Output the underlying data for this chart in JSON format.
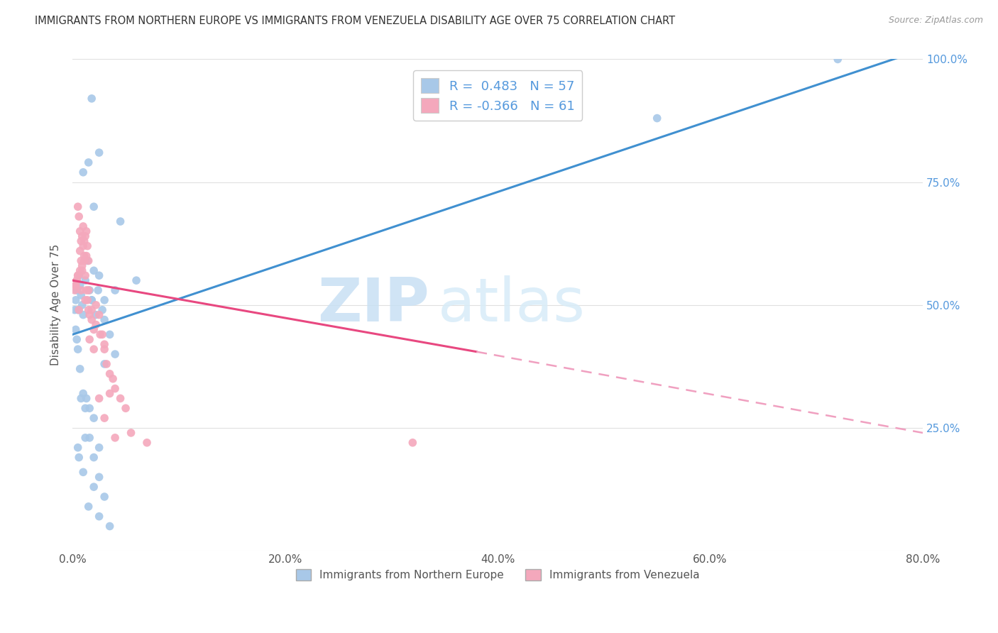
{
  "title": "IMMIGRANTS FROM NORTHERN EUROPE VS IMMIGRANTS FROM VENEZUELA DISABILITY AGE OVER 75 CORRELATION CHART",
  "source": "Source: ZipAtlas.com",
  "ylabel": "Disability Age Over 75",
  "blue_R": 0.483,
  "blue_N": 57,
  "pink_R": -0.366,
  "pink_N": 61,
  "blue_color": "#A8C8E8",
  "pink_color": "#F4A8BC",
  "blue_line_color": "#4090D0",
  "pink_line_color": "#E84880",
  "pink_dashed_color": "#F0A0C0",
  "legend_label_blue": "Immigrants from Northern Europe",
  "legend_label_pink": "Immigrants from Venezuela",
  "blue_line_x0": 0.0,
  "blue_line_y0": 44.0,
  "blue_line_x1": 80.0,
  "blue_line_y1": 102.0,
  "pink_solid_x0": 0.0,
  "pink_solid_y0": 55.0,
  "pink_solid_x1": 38.0,
  "pink_solid_y1": 40.5,
  "pink_dash_x0": 38.0,
  "pink_dash_y0": 40.5,
  "pink_dash_x1": 80.0,
  "pink_dash_y1": 24.0,
  "blue_x": [
    1.0,
    2.5,
    2.0,
    4.5,
    1.5,
    1.8,
    6.0,
    4.0,
    0.2,
    0.3,
    0.4,
    0.5,
    0.6,
    0.7,
    0.8,
    0.9,
    1.0,
    1.2,
    1.4,
    1.6,
    1.8,
    2.0,
    2.2,
    2.5,
    2.8,
    3.0,
    3.5,
    4.0,
    0.3,
    0.5,
    0.7,
    1.0,
    1.3,
    1.6,
    2.0,
    2.5,
    3.0,
    0.4,
    0.8,
    1.2,
    1.6,
    2.0,
    2.5,
    3.0,
    0.5,
    1.0,
    1.5,
    2.0,
    2.5,
    3.5,
    0.6,
    1.2,
    1.8,
    2.4,
    3.0,
    55.0,
    72.0
  ],
  "blue_y": [
    77.0,
    81.0,
    70.0,
    67.0,
    79.0,
    92.0,
    55.0,
    53.0,
    49.0,
    51.0,
    53.0,
    49.0,
    56.0,
    54.0,
    52.0,
    50.0,
    48.0,
    55.0,
    59.0,
    53.0,
    51.0,
    57.0,
    48.0,
    56.0,
    49.0,
    47.0,
    44.0,
    40.0,
    45.0,
    41.0,
    37.0,
    32.0,
    31.0,
    29.0,
    27.0,
    21.0,
    38.0,
    43.0,
    31.0,
    29.0,
    23.0,
    19.0,
    15.0,
    11.0,
    21.0,
    16.0,
    9.0,
    13.0,
    7.0,
    5.0,
    19.0,
    23.0,
    51.0,
    53.0,
    51.0,
    88.0,
    100.0
  ],
  "pink_x": [
    0.2,
    0.3,
    0.4,
    0.5,
    0.6,
    0.7,
    0.8,
    0.9,
    1.0,
    1.1,
    1.2,
    1.3,
    1.4,
    1.5,
    0.5,
    0.6,
    0.7,
    0.8,
    0.9,
    1.0,
    1.1,
    1.2,
    1.3,
    1.4,
    1.5,
    1.6,
    1.8,
    2.0,
    2.2,
    2.5,
    2.8,
    3.0,
    3.2,
    3.5,
    3.8,
    4.0,
    4.5,
    5.0,
    0.3,
    0.5,
    0.7,
    0.9,
    1.1,
    1.3,
    1.5,
    1.8,
    2.2,
    2.6,
    3.0,
    3.5,
    0.4,
    0.8,
    1.2,
    1.6,
    2.0,
    2.5,
    3.0,
    4.0,
    5.5,
    7.0,
    32.0
  ],
  "pink_y": [
    53.0,
    54.0,
    55.0,
    56.0,
    49.0,
    61.0,
    59.0,
    57.0,
    66.0,
    63.0,
    64.0,
    65.0,
    62.0,
    59.0,
    70.0,
    68.0,
    65.0,
    63.0,
    64.0,
    62.0,
    60.0,
    56.0,
    53.0,
    51.0,
    49.0,
    48.0,
    47.0,
    45.0,
    50.0,
    48.0,
    44.0,
    41.0,
    38.0,
    36.0,
    35.0,
    33.0,
    31.0,
    29.0,
    54.0,
    56.0,
    57.0,
    58.0,
    59.0,
    60.0,
    53.0,
    49.0,
    46.0,
    44.0,
    42.0,
    32.0,
    55.0,
    53.0,
    51.0,
    43.0,
    41.0,
    31.0,
    27.0,
    23.0,
    24.0,
    22.0,
    22.0
  ],
  "xlim": [
    0.0,
    80.0
  ],
  "ylim": [
    0.0,
    100.0
  ],
  "xticks": [
    0,
    20,
    40,
    60,
    80
  ],
  "yticks_right": [
    25,
    50,
    75,
    100
  ],
  "background_color": "#ffffff",
  "grid_color": "#e0e0e0"
}
